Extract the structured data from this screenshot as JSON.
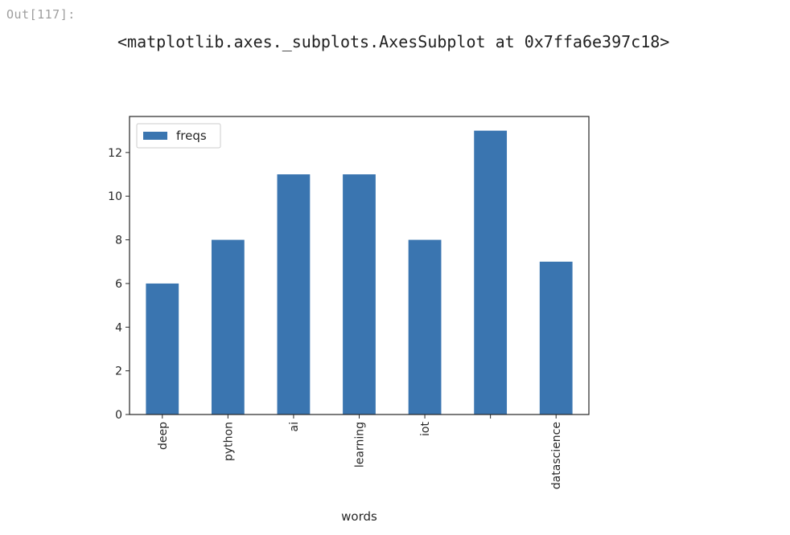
{
  "cell": {
    "prompt": "Out[117]:",
    "output_text": "<matplotlib.axes._subplots.AxesSubplot at 0x7ffa6e397c18>"
  },
  "chart_data": {
    "type": "bar",
    "categories": [
      "deep",
      "python",
      "ai",
      "learning",
      "iot",
      "",
      "datascience"
    ],
    "series": [
      {
        "name": "freqs",
        "values": [
          6,
          8,
          11,
          11,
          8,
          13,
          7
        ],
        "color": "#3a75b0"
      }
    ],
    "xlabel": "words",
    "ylabel": "",
    "ylim": [
      0,
      13.65
    ],
    "yticks": [
      0,
      2,
      4,
      6,
      8,
      10,
      12
    ],
    "legend": "upper-left",
    "grid": false
  }
}
